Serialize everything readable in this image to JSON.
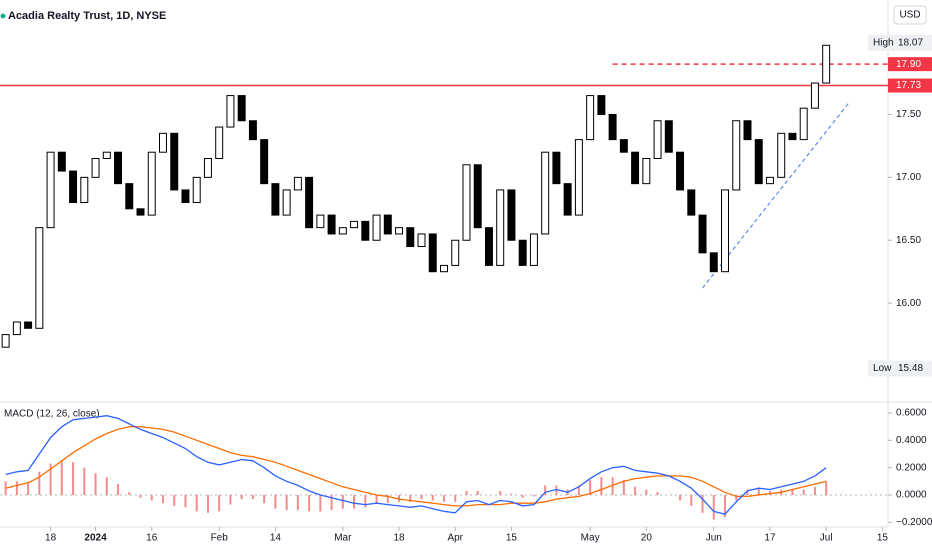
{
  "chart_data": {
    "type": "candlestick",
    "title": "Acadia Realty Trust, 1D, NYSE",
    "currency": "USD",
    "up_color": "#ffffff",
    "down_color": "#000000",
    "outline_color": "#000000",
    "open": [
      15.65,
      15.75,
      15.85,
      15.8,
      16.6,
      17.2,
      17.05,
      16.8,
      17.0,
      17.15,
      17.2,
      16.95,
      16.75,
      16.7,
      17.2,
      17.35,
      16.9,
      16.8,
      17.0,
      17.15,
      17.4,
      17.65,
      17.45,
      17.3,
      16.95,
      16.7,
      16.9,
      17.0,
      16.6,
      16.7,
      16.55,
      16.6,
      16.65,
      16.5,
      16.7,
      16.55,
      16.6,
      16.45,
      16.55,
      16.25,
      16.3,
      16.5,
      17.1,
      16.6,
      16.3,
      16.9,
      16.5,
      16.3,
      16.55,
      17.2,
      16.95,
      16.7,
      17.3,
      17.65,
      17.5,
      17.3,
      17.2,
      16.95,
      17.15,
      17.45,
      17.2,
      16.9,
      16.7,
      16.4,
      16.25,
      16.9,
      17.45,
      17.3,
      16.95,
      17.0,
      17.35,
      17.3,
      17.55,
      17.75
    ],
    "high": {
      "label": "High",
      "value": 18.07,
      "value_label": "18.07"
    },
    "low": {
      "label": "Low",
      "value": 15.48,
      "value_label": "15.48"
    },
    "close": [
      15.75,
      15.85,
      15.8,
      16.6,
      17.2,
      17.05,
      16.8,
      17.0,
      17.15,
      17.2,
      16.95,
      16.75,
      16.7,
      17.2,
      17.35,
      16.9,
      16.8,
      17.0,
      17.15,
      17.4,
      17.65,
      17.45,
      17.3,
      16.95,
      16.7,
      16.9,
      17.0,
      16.6,
      16.7,
      16.55,
      16.6,
      16.65,
      16.5,
      16.7,
      16.55,
      16.6,
      16.45,
      16.55,
      16.25,
      16.3,
      16.5,
      17.1,
      16.6,
      16.3,
      16.9,
      16.5,
      16.3,
      16.55,
      17.2,
      16.95,
      16.7,
      17.3,
      17.65,
      17.5,
      17.3,
      17.2,
      16.95,
      17.15,
      17.45,
      17.2,
      16.9,
      16.7,
      16.4,
      16.25,
      16.9,
      17.45,
      17.3,
      16.95,
      17.0,
      17.35,
      17.3,
      17.55,
      17.75,
      18.05
    ],
    "xlim": [
      -0.5,
      78.5
    ],
    "xticks": [
      {
        "value": 4,
        "label": "18"
      },
      {
        "value": 8,
        "label": "2024"
      },
      {
        "value": 13,
        "label": "16"
      },
      {
        "value": 19,
        "label": "Feb"
      },
      {
        "value": 24,
        "label": "14"
      },
      {
        "value": 30,
        "label": "Mar"
      },
      {
        "value": 35,
        "label": "18"
      },
      {
        "value": 40,
        "label": "Apr"
      },
      {
        "value": 45,
        "label": "15"
      },
      {
        "value": 52,
        "label": "May"
      },
      {
        "value": 57,
        "label": "20"
      },
      {
        "value": 63,
        "label": "Jun"
      },
      {
        "value": 68,
        "label": "17"
      },
      {
        "value": 73,
        "label": "Jul"
      },
      {
        "value": 78,
        "label": "15"
      }
    ],
    "ylim": [
      15.23,
      18.41
    ],
    "yticks": [
      {
        "value": 16,
        "label": "16.00"
      },
      {
        "value": 16.5,
        "label": "16.50"
      },
      {
        "value": 17,
        "label": "17.00"
      },
      {
        "value": 17.5,
        "label": "17.50"
      }
    ],
    "levels": [
      {
        "value": 17.73,
        "label": "17.73",
        "style": "solid",
        "color": "#f23645",
        "start": -0.5
      },
      {
        "value": 17.9,
        "label": "17.90",
        "style": "dashed",
        "color": "#f23645",
        "start": 54
      }
    ],
    "trendline": {
      "x": [
        62,
        75
      ],
      "y": [
        16.12,
        17.59
      ],
      "color": "#5b8def"
    },
    "macd": {
      "title": "MACD (12, 26, close)",
      "ylim": [
        -0.234,
        0.673
      ],
      "yticks": [
        {
          "value": -0.2,
          "label": "−0.2000"
        },
        {
          "value": 0,
          "label": "0.0000"
        },
        {
          "value": 0.2,
          "label": "0.2000"
        },
        {
          "value": 0.4,
          "label": "0.4000"
        },
        {
          "value": 0.6,
          "label": "0.6000"
        }
      ],
      "macd_line": {
        "color": "#2962ff",
        "values": [
          0.15,
          0.17,
          0.18,
          0.3,
          0.42,
          0.5,
          0.55,
          0.56,
          0.57,
          0.58,
          0.56,
          0.52,
          0.48,
          0.45,
          0.42,
          0.38,
          0.34,
          0.28,
          0.24,
          0.22,
          0.24,
          0.26,
          0.25,
          0.2,
          0.14,
          0.1,
          0.07,
          0.03,
          0.0,
          -0.02,
          -0.04,
          -0.06,
          -0.07,
          -0.06,
          -0.07,
          -0.08,
          -0.09,
          -0.08,
          -0.1,
          -0.12,
          -0.13,
          -0.05,
          -0.04,
          -0.07,
          -0.04,
          -0.05,
          -0.08,
          -0.07,
          0.02,
          0.04,
          0.02,
          0.06,
          0.12,
          0.17,
          0.2,
          0.21,
          0.18,
          0.17,
          0.16,
          0.14,
          0.1,
          0.05,
          -0.03,
          -0.12,
          -0.14,
          -0.05,
          0.03,
          0.05,
          0.04,
          0.06,
          0.08,
          0.1,
          0.14,
          0.2
        ]
      },
      "signal_line": {
        "color": "#ff6d00",
        "values": [
          0.05,
          0.07,
          0.09,
          0.13,
          0.19,
          0.25,
          0.31,
          0.36,
          0.41,
          0.45,
          0.48,
          0.5,
          0.5,
          0.49,
          0.48,
          0.46,
          0.43,
          0.4,
          0.37,
          0.34,
          0.31,
          0.29,
          0.28,
          0.26,
          0.24,
          0.21,
          0.18,
          0.15,
          0.12,
          0.09,
          0.06,
          0.04,
          0.02,
          0.0,
          -0.01,
          -0.03,
          -0.04,
          -0.05,
          -0.06,
          -0.07,
          -0.08,
          -0.08,
          -0.07,
          -0.07,
          -0.07,
          -0.06,
          -0.06,
          -0.06,
          -0.05,
          -0.03,
          -0.02,
          -0.01,
          0.01,
          0.04,
          0.07,
          0.1,
          0.12,
          0.13,
          0.14,
          0.14,
          0.14,
          0.13,
          0.1,
          0.06,
          0.02,
          -0.01,
          -0.01,
          0.0,
          0.01,
          0.02,
          0.04,
          0.06,
          0.08,
          0.1
        ]
      },
      "histogram": {
        "color": "#f28b8b",
        "values": [
          0.1,
          0.1,
          0.09,
          0.17,
          0.23,
          0.25,
          0.24,
          0.2,
          0.16,
          0.13,
          0.08,
          0.02,
          -0.02,
          -0.04,
          -0.06,
          -0.08,
          -0.09,
          -0.12,
          -0.13,
          -0.12,
          -0.07,
          -0.03,
          -0.03,
          -0.06,
          -0.1,
          -0.11,
          -0.11,
          -0.12,
          -0.12,
          -0.11,
          -0.1,
          -0.1,
          -0.09,
          -0.06,
          -0.06,
          -0.05,
          -0.05,
          -0.03,
          -0.04,
          -0.05,
          -0.05,
          0.03,
          0.03,
          0.0,
          0.03,
          0.01,
          -0.02,
          -0.01,
          0.07,
          0.07,
          0.04,
          0.07,
          0.11,
          0.13,
          0.13,
          0.11,
          0.06,
          0.04,
          0.02,
          0.0,
          -0.04,
          -0.08,
          -0.13,
          -0.18,
          -0.16,
          -0.04,
          0.04,
          0.05,
          0.03,
          0.04,
          0.04,
          0.04,
          0.06,
          0.1
        ]
      }
    }
  }
}
